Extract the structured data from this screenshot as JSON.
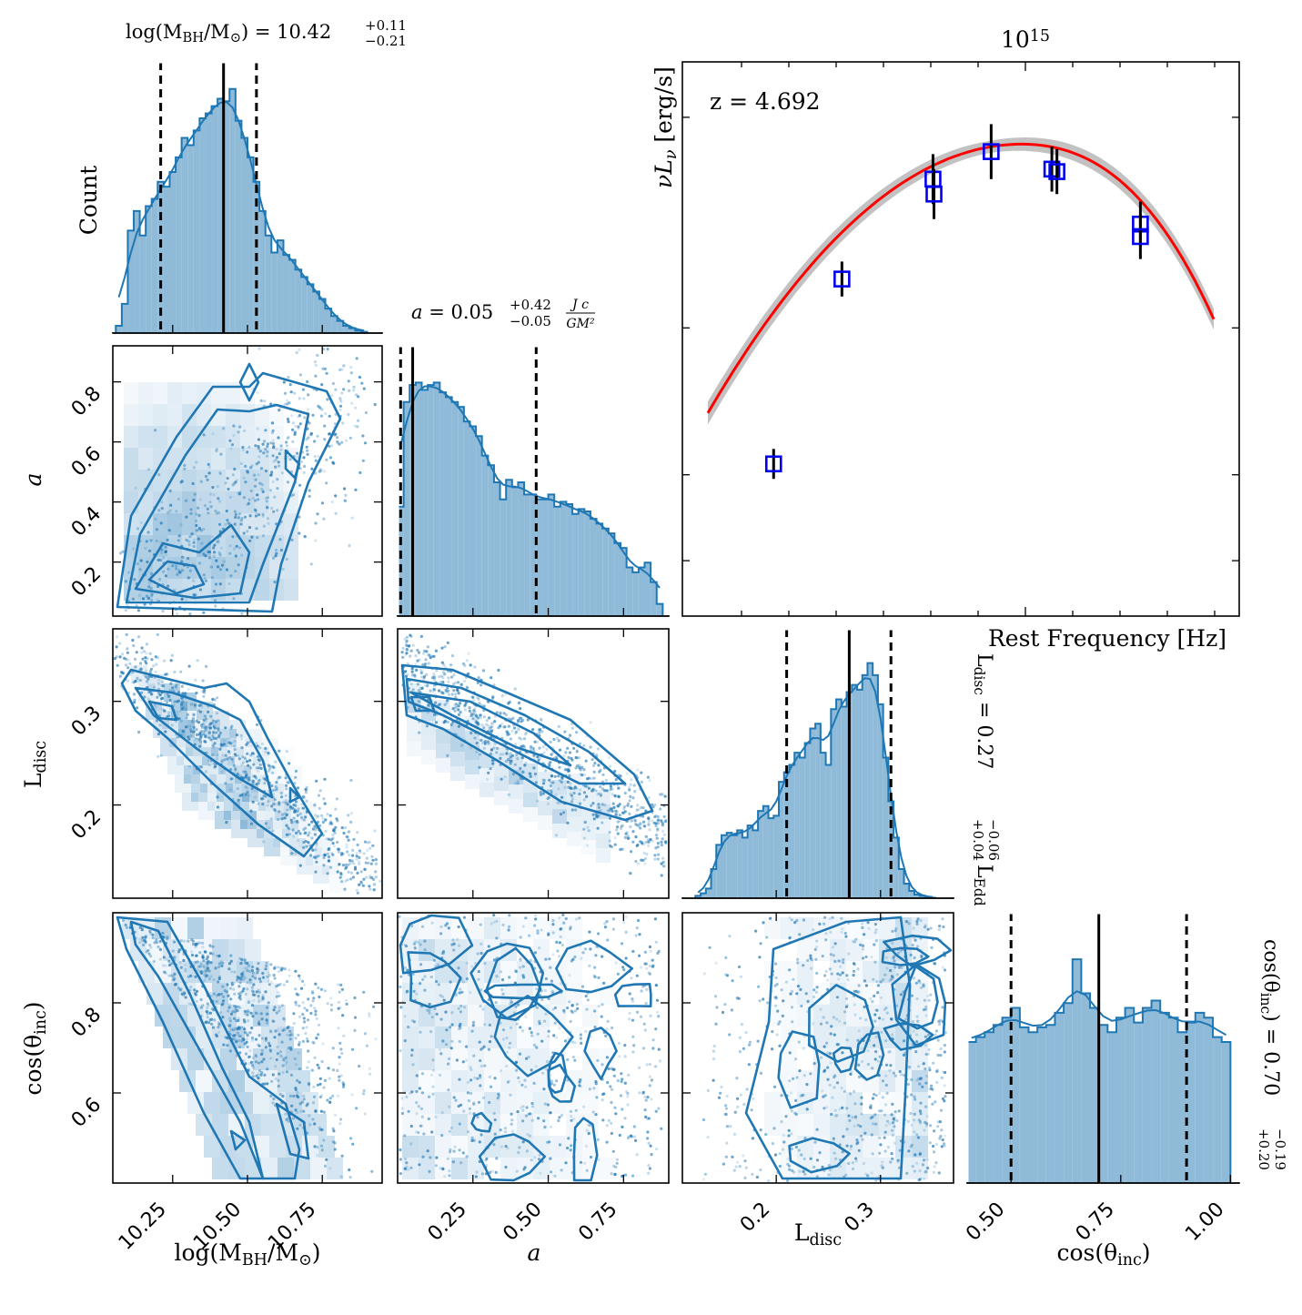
{
  "chart_data": [
    {
      "type": "histogram",
      "panel": "log(M_BH/M_sun) marginal",
      "title": "log(M_BH/M_sun) = 10.42 (+0.11 / -0.21)",
      "title_main": "log(M",
      "title_sub": "BH",
      "title_mid": "/M",
      "title_sun": "⊙",
      "title_value": ") = 10.42",
      "title_plus": "+0.11",
      "title_minus": "−0.21",
      "ylabel": "Count",
      "xlim": [
        10.05,
        10.95
      ],
      "median": 10.42,
      "q_low": 10.21,
      "q_high": 10.53,
      "bins_x": [
        10.07,
        10.09,
        10.11,
        10.13,
        10.15,
        10.17,
        10.19,
        10.21,
        10.23,
        10.25,
        10.27,
        10.29,
        10.31,
        10.33,
        10.35,
        10.37,
        10.39,
        10.41,
        10.43,
        10.45,
        10.47,
        10.49,
        10.51,
        10.53,
        10.55,
        10.57,
        10.59,
        10.61,
        10.63,
        10.65,
        10.67,
        10.69,
        10.71,
        10.73,
        10.75,
        10.77,
        10.79,
        10.81,
        10.83,
        10.85,
        10.87,
        10.89
      ],
      "bins_y": [
        0.03,
        0.12,
        0.42,
        0.5,
        0.4,
        0.52,
        0.55,
        0.62,
        0.6,
        0.66,
        0.72,
        0.8,
        0.77,
        0.83,
        0.88,
        0.9,
        0.93,
        0.96,
        0.95,
        1.0,
        0.87,
        0.8,
        0.72,
        0.62,
        0.5,
        0.4,
        0.33,
        0.38,
        0.32,
        0.3,
        0.26,
        0.23,
        0.2,
        0.17,
        0.14,
        0.1,
        0.07,
        0.05,
        0.03,
        0.02,
        0.01,
        0.005
      ]
    },
    {
      "type": "histogram",
      "panel": "a marginal",
      "title": "a = 0.05 (+0.42 / -0.05) Jc/GM^2",
      "title_prefix": "a",
      "title_value": " = 0.05",
      "title_plus": "+0.42",
      "title_minus": "−0.05",
      "title_unit_num": "J c",
      "title_unit_den": "GM²",
      "xlim": [
        0.0,
        0.9
      ],
      "median": 0.05,
      "q_low": 0.01,
      "q_high": 0.46,
      "bins_x": [
        0.01,
        0.03,
        0.05,
        0.07,
        0.09,
        0.11,
        0.13,
        0.15,
        0.17,
        0.19,
        0.21,
        0.23,
        0.25,
        0.27,
        0.29,
        0.31,
        0.33,
        0.35,
        0.37,
        0.39,
        0.41,
        0.43,
        0.45,
        0.47,
        0.49,
        0.51,
        0.53,
        0.55,
        0.57,
        0.59,
        0.61,
        0.63,
        0.65,
        0.67,
        0.69,
        0.71,
        0.73,
        0.75,
        0.77,
        0.79,
        0.81,
        0.83,
        0.85,
        0.87
      ],
      "bins_y": [
        0.45,
        0.88,
        0.95,
        0.96,
        0.93,
        0.95,
        0.96,
        0.92,
        0.9,
        0.88,
        0.86,
        0.8,
        0.78,
        0.74,
        0.66,
        0.62,
        0.55,
        0.48,
        0.56,
        0.53,
        0.55,
        0.5,
        0.5,
        0.48,
        0.48,
        0.5,
        0.45,
        0.47,
        0.46,
        0.42,
        0.44,
        0.43,
        0.4,
        0.38,
        0.36,
        0.34,
        0.3,
        0.28,
        0.2,
        0.18,
        0.2,
        0.22,
        0.14,
        0.05
      ]
    },
    {
      "type": "histogram",
      "panel": "L_disc marginal",
      "title": "L_disc = 0.27 (+0.04 / -0.06) L_Edd",
      "title_prefix": "L",
      "title_prefix_sub": "disc",
      "title_value": " = 0.27",
      "title_plus": "+0.04",
      "title_minus": "−0.06",
      "title_unit": "L",
      "title_unit_sub": "Edd",
      "xlim": [
        0.11,
        0.37
      ],
      "median": 0.27,
      "q_low": 0.21,
      "q_high": 0.31,
      "bins_x": [
        0.125,
        0.13,
        0.135,
        0.14,
        0.145,
        0.15,
        0.155,
        0.16,
        0.165,
        0.17,
        0.175,
        0.18,
        0.185,
        0.19,
        0.195,
        0.2,
        0.205,
        0.21,
        0.215,
        0.22,
        0.225,
        0.23,
        0.235,
        0.24,
        0.245,
        0.25,
        0.255,
        0.26,
        0.265,
        0.27,
        0.275,
        0.28,
        0.285,
        0.29,
        0.295,
        0.3,
        0.305,
        0.31,
        0.315,
        0.32,
        0.325,
        0.33,
        0.335,
        0.34,
        0.345,
        0.35
      ],
      "bins_y": [
        0.01,
        0.02,
        0.04,
        0.12,
        0.22,
        0.26,
        0.27,
        0.26,
        0.28,
        0.25,
        0.3,
        0.28,
        0.36,
        0.38,
        0.33,
        0.34,
        0.48,
        0.52,
        0.55,
        0.6,
        0.58,
        0.64,
        0.7,
        0.72,
        0.6,
        0.55,
        0.78,
        0.82,
        0.79,
        0.85,
        0.88,
        0.86,
        0.92,
        0.97,
        0.92,
        0.8,
        0.58,
        0.4,
        0.25,
        0.12,
        0.06,
        0.03,
        0.015,
        0.01,
        0.005,
        0.002
      ]
    },
    {
      "type": "histogram",
      "panel": "cos(theta_inc) marginal",
      "title": "cos(theta_inc) = 0.70 (+0.20 / -0.19)",
      "title_prefix": "cos(θ",
      "title_prefix_sub": "inc",
      "title_value": ") = 0.70",
      "title_plus": "+0.20",
      "title_minus": "−0.19",
      "xlim": [
        0.4,
        1.02
      ],
      "median": 0.7,
      "q_low": 0.5,
      "q_high": 0.9,
      "bins_x": [
        0.41,
        0.43,
        0.45,
        0.47,
        0.49,
        0.51,
        0.53,
        0.55,
        0.57,
        0.59,
        0.61,
        0.63,
        0.65,
        0.67,
        0.69,
        0.71,
        0.73,
        0.75,
        0.77,
        0.79,
        0.81,
        0.83,
        0.85,
        0.87,
        0.89,
        0.91,
        0.93,
        0.95,
        0.97,
        0.99
      ],
      "bins_y": [
        0.58,
        0.6,
        0.62,
        0.65,
        0.68,
        0.72,
        0.64,
        0.62,
        0.64,
        0.65,
        0.7,
        0.74,
        0.92,
        0.78,
        0.72,
        0.65,
        0.62,
        0.68,
        0.72,
        0.66,
        0.72,
        0.75,
        0.7,
        0.68,
        0.62,
        0.66,
        0.7,
        0.68,
        0.6,
        0.58
      ]
    },
    {
      "type": "scatter",
      "panel": "SED fit",
      "title": "10^15",
      "title_base": "10",
      "title_exp": "15",
      "xlabel": "Rest Frequency [Hz]",
      "ylabel": "νLν [erg/s]",
      "ylabel_main": "νL",
      "ylabel_sub": "ν",
      "ylabel_unit": " [erg/s]",
      "annotation": "z = 4.692",
      "model_curve_color": "#ff0000",
      "points": [
        {
          "x": 0.13,
          "y": 0.25,
          "err": 0.03
        },
        {
          "x": 0.265,
          "y": 0.62,
          "err": 0.035
        },
        {
          "x": 0.445,
          "y": 0.82,
          "err": 0.05
        },
        {
          "x": 0.447,
          "y": 0.79,
          "err": 0.05
        },
        {
          "x": 0.56,
          "y": 0.875,
          "err": 0.055
        },
        {
          "x": 0.68,
          "y": 0.84,
          "err": 0.045
        },
        {
          "x": 0.69,
          "y": 0.835,
          "err": 0.045
        },
        {
          "x": 0.855,
          "y": 0.73,
          "err": 0.045
        },
        {
          "x": 0.855,
          "y": 0.705,
          "err": 0.045
        }
      ]
    },
    {
      "type": "scatter",
      "panel": "corner 2D",
      "axis_labels": {
        "mbh": "log(MBH/M⊙)",
        "a": "a",
        "ldisc": "Ldisc",
        "cos": "cos(θinc)"
      },
      "tick_labels": {
        "mbh": [
          "10.25",
          "10.50",
          "10.75"
        ],
        "a_x": [
          "0.25",
          "0.50",
          "0.75"
        ],
        "a_y": [
          "0.2",
          "0.4",
          "0.6",
          "0.8"
        ],
        "ldisc_x": [
          "0.2",
          "0.3"
        ],
        "ldisc_y": [
          "0.2",
          "0.3"
        ],
        "cos_x": [
          "0.50",
          "0.75",
          "1.00"
        ],
        "cos_y": [
          "0.6",
          "0.8"
        ]
      },
      "mbh_tick_values": [
        10.25,
        10.5,
        10.75
      ],
      "a_tick_values": [
        0.2,
        0.4,
        0.6,
        0.8
      ],
      "a_x_tick_values": [
        0.25,
        0.5,
        0.75
      ],
      "ldisc_tick_values": [
        0.2,
        0.3
      ],
      "cos_x_tick_values": [
        0.5,
        0.75,
        1.0
      ],
      "cos_y_tick_values": [
        0.6,
        0.8
      ],
      "ylim_a": [
        0.02,
        0.92
      ],
      "ylim_ldisc": [
        0.11,
        0.37
      ],
      "ylim_cos": [
        0.4,
        1.0
      ]
    }
  ],
  "labels": {
    "mbh_axis_main": "log(M",
    "mbh_axis_sub": "BH",
    "mbh_axis_mid": "/M",
    "mbh_axis_sun": "⊙",
    "mbh_axis_end": ")",
    "a_axis": "a",
    "ldisc_axis_main": "L",
    "ldisc_axis_sub": "disc",
    "cos_axis_main": "cos(θ",
    "cos_axis_sub": "inc",
    "cos_axis_end": ")",
    "count_label": "Count"
  }
}
